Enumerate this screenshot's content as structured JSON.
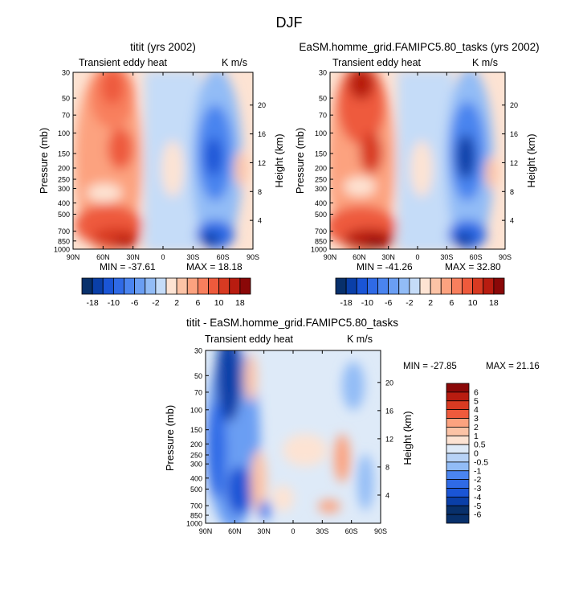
{
  "figure": {
    "title": "DJF"
  },
  "chart_data": [
    {
      "type": "heatmap",
      "title": "titit (yrs 2002)",
      "left_label": "Transient eddy heat",
      "right_label": "K m/s",
      "ylabel": "Pressure (mb)",
      "ylabel_right": "Height (km)",
      "x_ticks": [
        "90N",
        "60N",
        "30N",
        "0",
        "30S",
        "60S",
        "90S"
      ],
      "y_ticks": [
        "30",
        "50",
        "70",
        "100",
        "150",
        "200",
        "250",
        "300",
        "400",
        "500",
        "700",
        "850",
        "1000"
      ],
      "y_ticks_right": [
        "20",
        "16",
        "12",
        "8",
        "4"
      ],
      "min_label": "MIN = -37.61",
      "max_label": "MAX =  18.18",
      "colorbar_labels": [
        "-18",
        "-10",
        "-6",
        "-2",
        "2",
        "6",
        "10",
        "18"
      ],
      "levels": [
        -18,
        -14,
        -10,
        -8,
        -6,
        -4,
        -2,
        -1,
        1,
        2,
        4,
        6,
        8,
        10,
        14,
        18
      ]
    },
    {
      "type": "heatmap",
      "title": "EaSM.homme_grid.FAMIPC5.80_tasks (yrs 2002)",
      "left_label": "Transient eddy heat",
      "right_label": "K m/s",
      "ylabel": "Pressure (mb)",
      "ylabel_right": "Height (km)",
      "x_ticks": [
        "90N",
        "60N",
        "30N",
        "0",
        "30S",
        "60S",
        "90S"
      ],
      "y_ticks": [
        "30",
        "50",
        "70",
        "100",
        "150",
        "200",
        "250",
        "300",
        "400",
        "500",
        "700",
        "850",
        "1000"
      ],
      "y_ticks_right": [
        "20",
        "16",
        "12",
        "8",
        "4"
      ],
      "min_label": "MIN = -41.26",
      "max_label": "MAX =  32.80",
      "colorbar_labels": [
        "-18",
        "-10",
        "-6",
        "-2",
        "2",
        "6",
        "10",
        "18"
      ],
      "levels": [
        -18,
        -14,
        -10,
        -8,
        -6,
        -4,
        -2,
        -1,
        1,
        2,
        4,
        6,
        8,
        10,
        14,
        18
      ]
    },
    {
      "type": "heatmap",
      "title": "titit - EaSM.homme_grid.FAMIPC5.80_tasks",
      "left_label": "Transient eddy heat",
      "right_label": "K m/s",
      "ylabel": "Pressure (mb)",
      "ylabel_right": "Height (km)",
      "x_ticks": [
        "90N",
        "60N",
        "30N",
        "0",
        "30S",
        "60S",
        "90S"
      ],
      "y_ticks": [
        "30",
        "50",
        "70",
        "100",
        "150",
        "200",
        "250",
        "300",
        "400",
        "500",
        "700",
        "850",
        "1000"
      ],
      "y_ticks_right": [
        "20",
        "16",
        "12",
        "8",
        "4"
      ],
      "min_label": "MIN = -27.85",
      "max_label": "MAX =  21.16",
      "colorbar_labels": [
        "6",
        "5",
        "4",
        "3",
        "2",
        "1",
        "0.5",
        "0",
        "-0.5",
        "-1",
        "-2",
        "-3",
        "-4",
        "-5",
        "-6"
      ],
      "levels": [
        -6,
        -5,
        -4,
        -3,
        -2,
        -1,
        -0.5,
        0,
        0.5,
        1,
        2,
        3,
        4,
        5,
        6
      ]
    }
  ],
  "palette": [
    "#08306b",
    "#0a3fa8",
    "#1a55d6",
    "#2f6ae6",
    "#4a84ef",
    "#6a9ef3",
    "#92bcf6",
    "#c5dcf8",
    "#fde3d3",
    "#fcc3a6",
    "#fca27f",
    "#f87f5d",
    "#ee5a3c",
    "#d83a22",
    "#b81c10",
    "#8a0808"
  ]
}
